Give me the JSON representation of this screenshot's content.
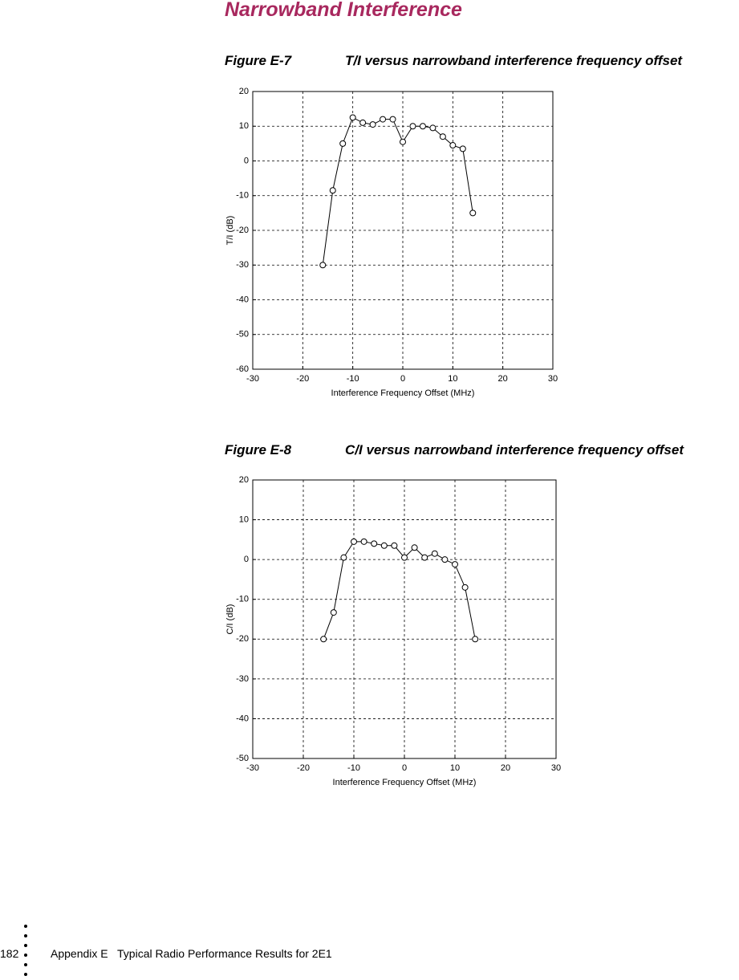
{
  "header": {
    "title": "Narrowband Interference"
  },
  "figures": [
    {
      "label": "Figure E-7",
      "caption": "T/I versus narrowband interference frequency offset"
    },
    {
      "label": "Figure E-8",
      "caption": "C/I versus narrowband interference frequency offset"
    }
  ],
  "chart_data": [
    {
      "type": "line",
      "x_label": "Interference Frequency Offset (MHz)",
      "y_label": "T/I  (dB)",
      "x": [
        -16,
        -14,
        -12,
        -10,
        -8,
        -6,
        -4,
        -2,
        0,
        2,
        4,
        6,
        8,
        10,
        12,
        14
      ],
      "values": [
        -30,
        -8.5,
        5,
        12.5,
        11,
        10.5,
        12,
        12,
        5.5,
        10,
        10,
        9.5,
        7,
        4.5,
        3.5,
        -15
      ],
      "color": "#000000",
      "marker": "circle",
      "xlim": [
        -30,
        30
      ],
      "xticks": [
        -30,
        -20,
        -10,
        0,
        10,
        20,
        30
      ],
      "ylim": [
        -60,
        20
      ],
      "yticks": [
        -60,
        -50,
        -40,
        -30,
        -20,
        -10,
        0,
        10,
        20
      ],
      "grid": true
    },
    {
      "type": "line",
      "x_label": "Interference Frequency Offset (MHz)",
      "y_label": "C/I  (dB)",
      "x": [
        -16,
        -14,
        -12,
        -10,
        -8,
        -6,
        -4,
        -2,
        0,
        2,
        4,
        6,
        8,
        10,
        12,
        14
      ],
      "values": [
        -20,
        -13.3,
        0.5,
        4.5,
        4.5,
        4,
        3.5,
        3.5,
        0.5,
        3,
        0.5,
        1.5,
        0,
        -1.2,
        -7,
        -20
      ],
      "color": "#000000",
      "marker": "circle",
      "xlim": [
        -30,
        30
      ],
      "xticks": [
        -30,
        -20,
        -10,
        0,
        10,
        20,
        30
      ],
      "ylim": [
        -50,
        20
      ],
      "yticks": [
        -50,
        -40,
        -30,
        -20,
        -10,
        0,
        10,
        20
      ],
      "grid": true
    }
  ],
  "footer": {
    "page": "182",
    "text": "Appendix E   Typical Radio Performance Results for 2E1"
  }
}
